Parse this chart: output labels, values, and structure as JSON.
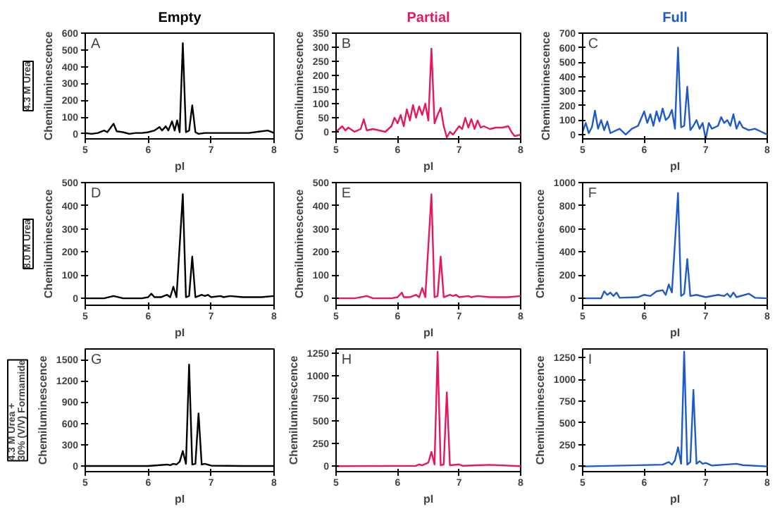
{
  "chart_data": [
    {
      "type": "line",
      "title": "Empty",
      "xlabel": "pI",
      "ylabel": "Chemiluminescence",
      "annotations": [
        "A",
        "4.3 M Urea"
      ],
      "xlim": [
        5,
        8
      ],
      "ylim": [
        -30,
        600
      ],
      "xticks": [
        5,
        6,
        7,
        8
      ],
      "yticks": [
        0,
        100,
        200,
        300,
        400,
        500,
        600
      ],
      "x": [
        5.0,
        5.1,
        5.2,
        5.3,
        5.35,
        5.45,
        5.5,
        5.6,
        5.7,
        5.8,
        5.9,
        6.0,
        6.1,
        6.18,
        6.22,
        6.28,
        6.32,
        6.38,
        6.42,
        6.46,
        6.5,
        6.55,
        6.6,
        6.65,
        6.7,
        6.75,
        6.8,
        6.9,
        7.0,
        7.2,
        7.4,
        7.6,
        7.8,
        7.9,
        8.0
      ],
      "series": [
        {
          "color": "#000000",
          "values": [
            5,
            0,
            5,
            20,
            10,
            60,
            15,
            10,
            0,
            5,
            5,
            10,
            20,
            40,
            20,
            45,
            20,
            75,
            20,
            80,
            10,
            540,
            10,
            20,
            170,
            10,
            0,
            5,
            5,
            5,
            5,
            5,
            15,
            20,
            5
          ]
        }
      ]
    },
    {
      "type": "line",
      "title": "Partial",
      "xlabel": "pI",
      "ylabel": "Chemiluminescence",
      "annotations": [
        "B"
      ],
      "xlim": [
        5,
        8
      ],
      "ylim": [
        -25,
        350
      ],
      "xticks": [
        5,
        6,
        7,
        8
      ],
      "yticks": [
        0,
        50,
        100,
        150,
        200,
        250,
        300,
        350
      ],
      "x": [
        5.0,
        5.05,
        5.1,
        5.15,
        5.2,
        5.3,
        5.4,
        5.45,
        5.5,
        5.6,
        5.7,
        5.8,
        5.9,
        5.95,
        6.0,
        6.05,
        6.1,
        6.15,
        6.2,
        6.25,
        6.3,
        6.35,
        6.4,
        6.45,
        6.5,
        6.55,
        6.6,
        6.65,
        6.7,
        6.75,
        6.8,
        6.85,
        6.9,
        7.0,
        7.05,
        7.1,
        7.15,
        7.2,
        7.25,
        7.3,
        7.35,
        7.4,
        7.5,
        7.6,
        7.7,
        7.8,
        7.85,
        7.9,
        8.0
      ],
      "series": [
        {
          "color": "#e8175d",
          "values": [
            0,
            10,
            20,
            5,
            15,
            0,
            10,
            45,
            5,
            10,
            5,
            0,
            20,
            50,
            30,
            60,
            20,
            80,
            40,
            95,
            50,
            90,
            60,
            100,
            40,
            295,
            30,
            60,
            85,
            20,
            -20,
            0,
            -10,
            20,
            10,
            50,
            15,
            45,
            10,
            40,
            15,
            20,
            10,
            15,
            15,
            20,
            0,
            -15,
            -10
          ]
        }
      ]
    },
    {
      "type": "line",
      "title": "Full",
      "xlabel": "pI",
      "ylabel": "Chemiluminescence",
      "annotations": [
        "C"
      ],
      "xlim": [
        5,
        8
      ],
      "ylim": [
        -30,
        700
      ],
      "xticks": [
        5,
        6,
        7,
        8
      ],
      "yticks": [
        0,
        100,
        200,
        300,
        400,
        500,
        600,
        700
      ],
      "x": [
        5.0,
        5.05,
        5.1,
        5.15,
        5.2,
        5.25,
        5.3,
        5.35,
        5.4,
        5.45,
        5.5,
        5.6,
        5.7,
        5.8,
        5.9,
        6.0,
        6.05,
        6.1,
        6.15,
        6.2,
        6.25,
        6.3,
        6.35,
        6.4,
        6.45,
        6.5,
        6.55,
        6.6,
        6.65,
        6.7,
        6.75,
        6.8,
        6.85,
        6.9,
        6.95,
        7.0,
        7.05,
        7.1,
        7.2,
        7.25,
        7.3,
        7.35,
        7.4,
        7.45,
        7.5,
        7.55,
        7.6,
        7.7,
        7.8,
        7.9,
        8.0
      ],
      "series": [
        {
          "color": "#1f5bc8",
          "values": [
            20,
            80,
            10,
            50,
            165,
            40,
            100,
            30,
            90,
            10,
            20,
            40,
            0,
            40,
            60,
            160,
            80,
            140,
            60,
            160,
            90,
            180,
            100,
            120,
            170,
            40,
            600,
            50,
            60,
            330,
            30,
            60,
            100,
            40,
            80,
            -30,
            80,
            40,
            60,
            120,
            80,
            100,
            60,
            140,
            40,
            90,
            50,
            30,
            40,
            20,
            0
          ]
        }
      ]
    },
    {
      "type": "line",
      "xlabel": "pI",
      "ylabel": "Chemiluminescence",
      "annotations": [
        "D",
        "8.0 M Urea"
      ],
      "xlim": [
        5,
        8
      ],
      "ylim": [
        -30,
        500
      ],
      "xticks": [
        5,
        6,
        7,
        8
      ],
      "yticks": [
        0,
        100,
        200,
        300,
        400,
        500
      ],
      "x": [
        5.0,
        5.3,
        5.45,
        5.6,
        5.9,
        6.0,
        6.05,
        6.1,
        6.2,
        6.3,
        6.35,
        6.4,
        6.45,
        6.55,
        6.6,
        6.65,
        6.7,
        6.75,
        6.85,
        6.9,
        6.95,
        7.0,
        7.15,
        7.2,
        7.3,
        7.5,
        7.8,
        8.0
      ],
      "series": [
        {
          "color": "#000000",
          "values": [
            0,
            0,
            10,
            0,
            0,
            5,
            20,
            5,
            5,
            15,
            5,
            50,
            5,
            450,
            5,
            10,
            180,
            5,
            15,
            10,
            15,
            5,
            10,
            5,
            10,
            5,
            5,
            10
          ]
        }
      ]
    },
    {
      "type": "line",
      "xlabel": "pI",
      "ylabel": "Chemiluminescence",
      "annotations": [
        "E"
      ],
      "xlim": [
        5,
        8
      ],
      "ylim": [
        -30,
        500
      ],
      "xticks": [
        5,
        6,
        7,
        8
      ],
      "yticks": [
        0,
        100,
        200,
        300,
        400,
        500
      ],
      "x": [
        5.0,
        5.3,
        5.5,
        5.6,
        5.9,
        6.0,
        6.07,
        6.1,
        6.2,
        6.3,
        6.35,
        6.4,
        6.45,
        6.55,
        6.6,
        6.65,
        6.7,
        6.75,
        6.85,
        6.9,
        6.95,
        7.0,
        7.15,
        7.2,
        7.3,
        7.5,
        7.8,
        8.0
      ],
      "series": [
        {
          "color": "#e8175d",
          "values": [
            0,
            0,
            10,
            0,
            0,
            5,
            25,
            5,
            5,
            15,
            5,
            45,
            5,
            450,
            5,
            10,
            180,
            5,
            15,
            10,
            15,
            5,
            10,
            5,
            10,
            5,
            5,
            10
          ]
        }
      ]
    },
    {
      "type": "line",
      "xlabel": "pI",
      "ylabel": "Chemiluminescence",
      "annotations": [
        "F"
      ],
      "xlim": [
        5,
        8
      ],
      "ylim": [
        -60,
        1000
      ],
      "xticks": [
        5,
        6,
        7,
        8
      ],
      "yticks": [
        0,
        200,
        400,
        600,
        800,
        1000
      ],
      "x": [
        5.0,
        5.3,
        5.35,
        5.4,
        5.45,
        5.5,
        5.55,
        5.6,
        5.9,
        6.0,
        6.1,
        6.2,
        6.3,
        6.35,
        6.4,
        6.45,
        6.55,
        6.6,
        6.65,
        6.7,
        6.75,
        6.85,
        7.0,
        7.2,
        7.3,
        7.35,
        7.4,
        7.45,
        7.5,
        7.7,
        7.8,
        8.0
      ],
      "series": [
        {
          "color": "#1f5bc8",
          "values": [
            0,
            0,
            60,
            30,
            50,
            20,
            50,
            5,
            10,
            30,
            20,
            60,
            70,
            30,
            120,
            50,
            910,
            20,
            40,
            340,
            20,
            30,
            10,
            30,
            20,
            40,
            10,
            50,
            10,
            40,
            5,
            0
          ]
        }
      ]
    },
    {
      "type": "line",
      "xlabel": "pI",
      "ylabel": "Chemiluminescence",
      "annotations": [
        "G",
        "4.3 M Urea +\n30% (V/V) Formamide"
      ],
      "xlim": [
        5,
        8
      ],
      "ylim": [
        -80,
        1650
      ],
      "xticks": [
        5,
        6,
        7,
        8
      ],
      "yticks": [
        0,
        300,
        600,
        900,
        1200,
        1500
      ],
      "x": [
        5.0,
        6.0,
        6.3,
        6.35,
        6.4,
        6.45,
        6.5,
        6.55,
        6.6,
        6.65,
        6.7,
        6.75,
        6.8,
        6.85,
        6.9,
        7.0,
        7.5,
        8.0
      ],
      "series": [
        {
          "color": "#000000",
          "values": [
            0,
            0,
            20,
            10,
            30,
            20,
            60,
            210,
            30,
            1430,
            20,
            30,
            740,
            20,
            30,
            5,
            0,
            0
          ]
        }
      ]
    },
    {
      "type": "line",
      "xlabel": "pI",
      "ylabel": "Chemiluminescence",
      "annotations": [
        "H"
      ],
      "xlim": [
        5,
        8
      ],
      "ylim": [
        -60,
        1300
      ],
      "xticks": [
        5,
        6,
        7,
        8
      ],
      "yticks": [
        0,
        250,
        500,
        750,
        1000,
        1250
      ],
      "x": [
        5.0,
        6.3,
        6.35,
        6.4,
        6.5,
        6.55,
        6.6,
        6.65,
        6.7,
        6.75,
        6.8,
        6.85,
        7.0,
        7.05,
        7.3,
        7.5,
        8.0
      ],
      "series": [
        {
          "color": "#e8175d",
          "values": [
            0,
            5,
            20,
            10,
            40,
            160,
            20,
            1270,
            10,
            20,
            820,
            10,
            20,
            5,
            10,
            15,
            0
          ]
        }
      ]
    },
    {
      "type": "line",
      "xlabel": "pI",
      "ylabel": "Chemiluminescence",
      "annotations": [
        "I"
      ],
      "xlim": [
        5,
        8
      ],
      "ylim": [
        -60,
        1350
      ],
      "xticks": [
        5,
        6,
        7,
        8
      ],
      "yticks": [
        0,
        250,
        500,
        750,
        1000,
        1250
      ],
      "x": [
        5.0,
        6.3,
        6.4,
        6.45,
        6.5,
        6.55,
        6.6,
        6.65,
        6.7,
        6.75,
        6.8,
        6.85,
        6.9,
        6.95,
        7.0,
        7.1,
        7.3,
        7.5,
        7.6,
        8.0
      ],
      "series": [
        {
          "color": "#1f5bc8",
          "values": [
            0,
            20,
            50,
            20,
            70,
            220,
            30,
            1320,
            20,
            50,
            880,
            30,
            60,
            30,
            40,
            10,
            20,
            30,
            15,
            0
          ]
        }
      ]
    }
  ]
}
